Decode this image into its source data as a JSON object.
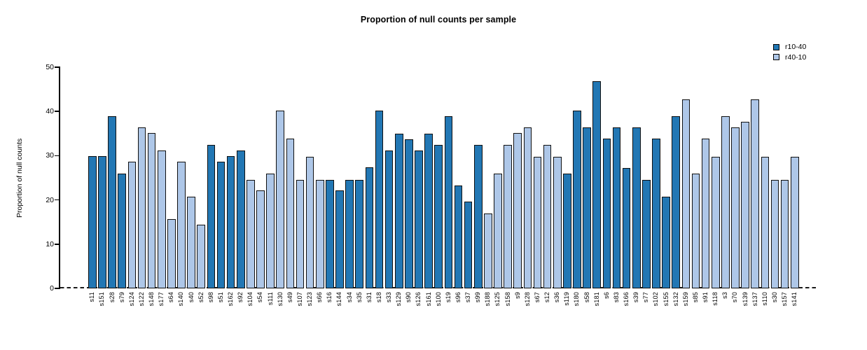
{
  "title": "Proportion of null counts per sample",
  "chart_data": {
    "type": "bar",
    "title": "Proportion of null counts per sample",
    "xlabel": "",
    "ylabel": "Proportion of null counts",
    "ylim": [
      0,
      50
    ],
    "yticks": [
      0,
      10,
      20,
      30,
      40,
      50
    ],
    "grid": false,
    "baseline_style": "dashed",
    "legend_position": "top-right",
    "legend": [
      {
        "name": "r10-40",
        "color": "#2277b4"
      },
      {
        "name": "r40-10",
        "color": "#aec7e8"
      }
    ],
    "bars": [
      {
        "x": "s11",
        "y": 29.9,
        "group": "r10-40"
      },
      {
        "x": "s151",
        "y": 29.9,
        "group": "r10-40"
      },
      {
        "x": "s28",
        "y": 39.0,
        "group": "r10-40"
      },
      {
        "x": "s79",
        "y": 26.0,
        "group": "r10-40"
      },
      {
        "x": "s124",
        "y": 28.6,
        "group": "r40-10"
      },
      {
        "x": "s122",
        "y": 36.4,
        "group": "r40-10"
      },
      {
        "x": "s148",
        "y": 35.1,
        "group": "r40-10"
      },
      {
        "x": "s177",
        "y": 31.2,
        "group": "r40-10"
      },
      {
        "x": "s64",
        "y": 15.6,
        "group": "r40-10"
      },
      {
        "x": "s140",
        "y": 28.6,
        "group": "r40-10"
      },
      {
        "x": "s40",
        "y": 20.8,
        "group": "r40-10"
      },
      {
        "x": "s52",
        "y": 14.4,
        "group": "r40-10"
      },
      {
        "x": "s98",
        "y": 32.5,
        "group": "r10-40"
      },
      {
        "x": "s51",
        "y": 28.6,
        "group": "r10-40"
      },
      {
        "x": "s162",
        "y": 29.9,
        "group": "r10-40"
      },
      {
        "x": "s92",
        "y": 31.2,
        "group": "r10-40"
      },
      {
        "x": "s104",
        "y": 24.6,
        "group": "r40-10"
      },
      {
        "x": "s54",
        "y": 22.1,
        "group": "r40-10"
      },
      {
        "x": "s111",
        "y": 26.0,
        "group": "r40-10"
      },
      {
        "x": "s130",
        "y": 40.2,
        "group": "r40-10"
      },
      {
        "x": "s49",
        "y": 33.8,
        "group": "r40-10"
      },
      {
        "x": "s107",
        "y": 24.6,
        "group": "r40-10"
      },
      {
        "x": "s123",
        "y": 29.8,
        "group": "r40-10"
      },
      {
        "x": "s66",
        "y": 24.6,
        "group": "r40-10"
      },
      {
        "x": "s16",
        "y": 24.6,
        "group": "r10-40"
      },
      {
        "x": "s144",
        "y": 22.1,
        "group": "r10-40"
      },
      {
        "x": "s34",
        "y": 24.6,
        "group": "r10-40"
      },
      {
        "x": "s35",
        "y": 24.6,
        "group": "r10-40"
      },
      {
        "x": "s31",
        "y": 27.3,
        "group": "r10-40"
      },
      {
        "x": "s18",
        "y": 40.2,
        "group": "r10-40"
      },
      {
        "x": "s33",
        "y": 31.2,
        "group": "r10-40"
      },
      {
        "x": "s129",
        "y": 34.9,
        "group": "r10-40"
      },
      {
        "x": "s90",
        "y": 33.7,
        "group": "r10-40"
      },
      {
        "x": "s126",
        "y": 31.2,
        "group": "r10-40"
      },
      {
        "x": "s161",
        "y": 34.9,
        "group": "r10-40"
      },
      {
        "x": "s100",
        "y": 32.5,
        "group": "r10-40"
      },
      {
        "x": "s19",
        "y": 39.0,
        "group": "r10-40"
      },
      {
        "x": "s96",
        "y": 23.3,
        "group": "r10-40"
      },
      {
        "x": "s37",
        "y": 19.6,
        "group": "r10-40"
      },
      {
        "x": "s99",
        "y": 32.4,
        "group": "r10-40"
      },
      {
        "x": "s188",
        "y": 16.9,
        "group": "r40-10"
      },
      {
        "x": "s125",
        "y": 26.0,
        "group": "r40-10"
      },
      {
        "x": "s158",
        "y": 32.5,
        "group": "r40-10"
      },
      {
        "x": "s9",
        "y": 35.1,
        "group": "r40-10"
      },
      {
        "x": "s128",
        "y": 36.4,
        "group": "r40-10"
      },
      {
        "x": "s67",
        "y": 29.8,
        "group": "r40-10"
      },
      {
        "x": "s12",
        "y": 32.5,
        "group": "r40-10"
      },
      {
        "x": "s36",
        "y": 29.8,
        "group": "r40-10"
      },
      {
        "x": "s119",
        "y": 26.0,
        "group": "r10-40"
      },
      {
        "x": "s180",
        "y": 40.2,
        "group": "r10-40"
      },
      {
        "x": "s58",
        "y": 36.4,
        "group": "r10-40"
      },
      {
        "x": "s181",
        "y": 46.8,
        "group": "r10-40"
      },
      {
        "x": "s6",
        "y": 33.8,
        "group": "r10-40"
      },
      {
        "x": "s83",
        "y": 36.4,
        "group": "r10-40"
      },
      {
        "x": "s166",
        "y": 27.2,
        "group": "r10-40"
      },
      {
        "x": "s39",
        "y": 36.4,
        "group": "r10-40"
      },
      {
        "x": "s77",
        "y": 24.5,
        "group": "r10-40"
      },
      {
        "x": "s102",
        "y": 33.8,
        "group": "r10-40"
      },
      {
        "x": "s155",
        "y": 20.8,
        "group": "r10-40"
      },
      {
        "x": "s132",
        "y": 39.0,
        "group": "r10-40"
      },
      {
        "x": "s159",
        "y": 42.8,
        "group": "r40-10"
      },
      {
        "x": "s85",
        "y": 26.0,
        "group": "r40-10"
      },
      {
        "x": "s91",
        "y": 33.8,
        "group": "r40-10"
      },
      {
        "x": "s118",
        "y": 29.8,
        "group": "r40-10"
      },
      {
        "x": "s3",
        "y": 39.0,
        "group": "r40-10"
      },
      {
        "x": "s70",
        "y": 36.4,
        "group": "r40-10"
      },
      {
        "x": "s139",
        "y": 37.7,
        "group": "r40-10"
      },
      {
        "x": "s137",
        "y": 42.8,
        "group": "r40-10"
      },
      {
        "x": "s110",
        "y": 29.8,
        "group": "r40-10"
      },
      {
        "x": "s30",
        "y": 24.5,
        "group": "r40-10"
      },
      {
        "x": "s157",
        "y": 24.5,
        "group": "r40-10"
      },
      {
        "x": "s141",
        "y": 29.8,
        "group": "r40-10"
      }
    ]
  }
}
